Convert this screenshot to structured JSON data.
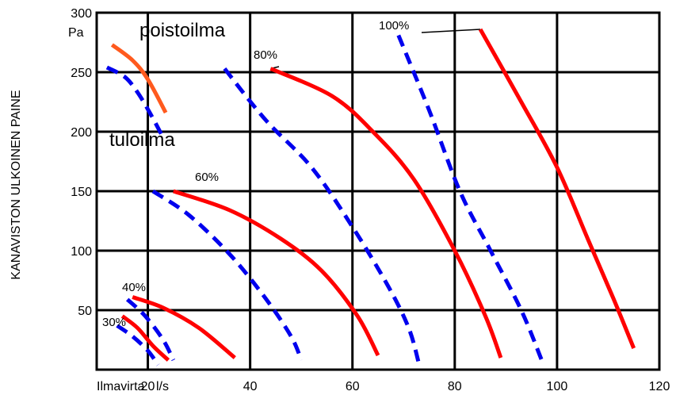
{
  "chart_data": {
    "type": "line",
    "title": "",
    "xlabel": "Ilmavirta",
    "x_unit": "l/s",
    "ylabel": "KANAVISTON ULKOINEN PAINE",
    "y_unit": "Pa",
    "xlim": [
      10,
      120
    ],
    "ylim": [
      0,
      300
    ],
    "x_ticks": [
      20,
      40,
      60,
      80,
      100,
      120
    ],
    "y_ticks": [
      50,
      100,
      150,
      200,
      250,
      300
    ],
    "grid": true,
    "legend_labels": [
      {
        "text": "poistoilma",
        "color": "#ff0000"
      },
      {
        "text": "tuloilma",
        "color": "#0000ee"
      }
    ],
    "colors": {
      "poistoilma": "#ff0000",
      "poistoilma_legend": "#ff5a1e",
      "tuloilma": "#0000ee"
    },
    "series": [
      {
        "speed": "30%",
        "kind": "poistoilma",
        "x": [
          15,
          18,
          21,
          24
        ],
        "y": [
          45,
          35,
          20,
          8
        ]
      },
      {
        "speed": "30%",
        "kind": "tuloilma",
        "x": [
          14,
          17,
          20,
          22
        ],
        "y": [
          37,
          28,
          16,
          4
        ]
      },
      {
        "speed": "40%",
        "kind": "poistoilma",
        "x": [
          17,
          23,
          30,
          37
        ],
        "y": [
          61,
          52,
          35,
          10
        ]
      },
      {
        "speed": "40%",
        "kind": "tuloilma",
        "x": [
          16,
          19.5,
          23,
          25
        ],
        "y": [
          59,
          45,
          25,
          8
        ]
      },
      {
        "speed": "60%",
        "kind": "poistoilma",
        "x": [
          25,
          36,
          46,
          54,
          61,
          65
        ],
        "y": [
          150,
          134,
          110,
          83,
          45,
          12
        ]
      },
      {
        "speed": "60%",
        "kind": "tuloilma",
        "x": [
          21,
          28,
          36,
          43,
          48,
          50
        ],
        "y": [
          150,
          130,
          97,
          60,
          28,
          8
        ]
      },
      {
        "speed": "80%",
        "kind": "poistoilma",
        "x": [
          44,
          56,
          64,
          72,
          80,
          86,
          89
        ],
        "y": [
          253,
          230,
          200,
          160,
          100,
          45,
          10
        ]
      },
      {
        "speed": "80%",
        "kind": "tuloilma",
        "x": [
          35,
          43,
          52,
          60,
          67,
          71,
          73
        ],
        "y": [
          253,
          210,
          170,
          120,
          70,
          35,
          5
        ]
      },
      {
        "speed": "100%",
        "kind": "poistoilma",
        "x": [
          85,
          93,
          100,
          106,
          111,
          115
        ],
        "y": [
          286,
          225,
          170,
          110,
          60,
          18
        ]
      },
      {
        "speed": "100%",
        "kind": "tuloilma",
        "x": [
          69,
          75,
          81,
          87,
          93,
          97
        ],
        "y": [
          281,
          218,
          150,
          100,
          50,
          8
        ]
      }
    ],
    "legend_curves": [
      {
        "kind": "poistoilma",
        "x": [
          13,
          17,
          20,
          23.5
        ],
        "y": [
          273,
          260,
          244,
          216
        ]
      },
      {
        "kind": "tuloilma",
        "x": [
          12,
          15.5,
          18,
          20.5,
          23
        ],
        "y": [
          254,
          246,
          233,
          215,
          195
        ]
      }
    ],
    "annotations": [
      {
        "text": "30%",
        "speed": "30%"
      },
      {
        "text": "40%",
        "speed": "40%"
      },
      {
        "text": "60%",
        "speed": "60%"
      },
      {
        "text": "80%",
        "speed": "80%"
      },
      {
        "text": "100%",
        "speed": "100%"
      }
    ]
  }
}
